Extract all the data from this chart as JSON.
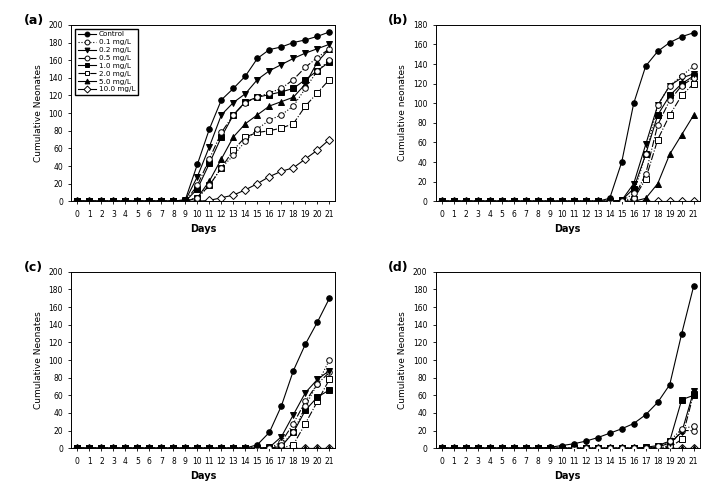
{
  "days": [
    0,
    1,
    2,
    3,
    4,
    5,
    6,
    7,
    8,
    9,
    10,
    11,
    12,
    13,
    14,
    15,
    16,
    17,
    18,
    19,
    20,
    21
  ],
  "panel_a": {
    "title": "(a)",
    "ylabel": "Cumulative Neonates",
    "xlabel": "Days",
    "ylim": [
      0,
      200
    ],
    "yticks": [
      0,
      20,
      40,
      60,
      80,
      100,
      120,
      140,
      160,
      180,
      200
    ],
    "series": [
      {
        "label": "Control",
        "ls": "-",
        "mk": "o",
        "filled": true,
        "data": [
          0,
          0,
          0,
          0,
          0,
          0,
          0,
          0,
          0,
          2,
          42,
          82,
          115,
          128,
          142,
          162,
          172,
          175,
          180,
          183,
          187,
          192
        ]
      },
      {
        "label": "0.1 mg/L",
        "ls": ":",
        "mk": "o",
        "filled": false,
        "data": [
          0,
          0,
          0,
          0,
          0,
          0,
          0,
          0,
          0,
          0,
          4,
          18,
          38,
          52,
          68,
          82,
          92,
          98,
          108,
          128,
          148,
          160
        ]
      },
      {
        "label": "0.2 mg/L",
        "ls": "-",
        "mk": "v",
        "filled": true,
        "data": [
          0,
          0,
          0,
          0,
          0,
          0,
          0,
          0,
          0,
          1,
          28,
          62,
          98,
          112,
          122,
          138,
          148,
          155,
          162,
          168,
          173,
          178
        ]
      },
      {
        "label": "0.5 mg/L",
        "ls": "-.",
        "mk": "o",
        "filled": false,
        "data": [
          0,
          0,
          0,
          0,
          0,
          0,
          0,
          0,
          0,
          0,
          18,
          48,
          78,
          98,
          112,
          118,
          123,
          128,
          138,
          152,
          163,
          173
        ]
      },
      {
        "label": "1.0 mg/L",
        "ls": "-",
        "mk": "s",
        "filled": true,
        "data": [
          0,
          0,
          0,
          0,
          0,
          0,
          0,
          0,
          0,
          0,
          14,
          43,
          73,
          98,
          113,
          118,
          121,
          124,
          128,
          138,
          148,
          158
        ]
      },
      {
        "label": "2.0 mg/L",
        "ls": "-.",
        "mk": "s",
        "filled": false,
        "data": [
          0,
          0,
          0,
          0,
          0,
          0,
          0,
          0,
          0,
          0,
          4,
          18,
          38,
          58,
          73,
          78,
          80,
          83,
          88,
          108,
          123,
          138
        ]
      },
      {
        "label": "5.0 mg/L",
        "ls": "-",
        "mk": "^",
        "filled": true,
        "data": [
          0,
          0,
          0,
          0,
          0,
          0,
          0,
          0,
          0,
          0,
          4,
          23,
          48,
          73,
          88,
          98,
          108,
          113,
          118,
          133,
          158,
          173
        ]
      },
      {
        "label": "10.0 mg/L",
        "ls": "-",
        "mk": "D",
        "filled": false,
        "data": [
          0,
          0,
          0,
          0,
          0,
          0,
          0,
          0,
          0,
          0,
          0,
          1,
          4,
          7,
          13,
          20,
          28,
          34,
          38,
          48,
          58,
          70
        ]
      }
    ]
  },
  "panel_b": {
    "title": "(b)",
    "ylabel": "Cumulative neonates",
    "xlabel": "Days",
    "ylim": [
      0,
      180
    ],
    "yticks": [
      0,
      20,
      40,
      60,
      80,
      100,
      120,
      140,
      160,
      180
    ],
    "series": [
      {
        "label": "Control",
        "ls": "-",
        "mk": "o",
        "filled": true,
        "data": [
          0,
          0,
          0,
          0,
          0,
          0,
          0,
          0,
          0,
          0,
          0,
          0,
          0,
          0,
          3,
          40,
          100,
          138,
          153,
          162,
          168,
          172
        ]
      },
      {
        "label": "0.1 mg/L",
        "ls": ":",
        "mk": "o",
        "filled": false,
        "data": [
          0,
          0,
          0,
          0,
          0,
          0,
          0,
          0,
          0,
          0,
          0,
          0,
          0,
          0,
          0,
          0,
          8,
          48,
          98,
          118,
          128,
          138
        ]
      },
      {
        "label": "0.2 mg/L",
        "ls": "-",
        "mk": "v",
        "filled": true,
        "data": [
          0,
          0,
          0,
          0,
          0,
          0,
          0,
          0,
          0,
          0,
          0,
          0,
          0,
          0,
          0,
          1,
          18,
          58,
          98,
          118,
          126,
          130
        ]
      },
      {
        "label": "0.5 mg/L",
        "ls": "-.",
        "mk": "o",
        "filled": false,
        "data": [
          0,
          0,
          0,
          0,
          0,
          0,
          0,
          0,
          0,
          0,
          0,
          0,
          0,
          0,
          0,
          0,
          3,
          28,
          78,
          103,
          118,
          126
        ]
      },
      {
        "label": "1.0 mg/L",
        "ls": "-",
        "mk": "s",
        "filled": true,
        "data": [
          0,
          0,
          0,
          0,
          0,
          0,
          0,
          0,
          0,
          0,
          0,
          0,
          0,
          0,
          0,
          1,
          13,
          48,
          88,
          108,
          120,
          128
        ]
      },
      {
        "label": "2.0 mg/L",
        "ls": "-.",
        "mk": "s",
        "filled": false,
        "data": [
          0,
          0,
          0,
          0,
          0,
          0,
          0,
          0,
          0,
          0,
          0,
          0,
          0,
          0,
          0,
          0,
          2,
          23,
          63,
          88,
          108,
          120
        ]
      },
      {
        "label": "5.0 mg/L",
        "ls": "-",
        "mk": "^",
        "filled": true,
        "data": [
          0,
          0,
          0,
          0,
          0,
          0,
          0,
          0,
          0,
          0,
          0,
          0,
          0,
          0,
          0,
          0,
          0,
          3,
          18,
          48,
          68,
          88
        ]
      },
      {
        "label": "10.0 mg/L",
        "ls": "-",
        "mk": "D",
        "filled": false,
        "data": [
          0,
          0,
          0,
          0,
          0,
          0,
          0,
          0,
          0,
          0,
          0,
          0,
          0,
          0,
          0,
          0,
          0,
          0,
          0,
          0,
          0,
          0
        ]
      }
    ]
  },
  "panel_c": {
    "title": "(c)",
    "ylabel": "Cumulative Neonates",
    "xlabel": "Days",
    "ylim": [
      0,
      200
    ],
    "yticks": [
      0,
      20,
      40,
      60,
      80,
      100,
      120,
      140,
      160,
      180,
      200
    ],
    "series": [
      {
        "label": "Control",
        "ls": "-",
        "mk": "o",
        "filled": true,
        "data": [
          0,
          0,
          0,
          0,
          0,
          0,
          0,
          0,
          0,
          0,
          0,
          0,
          0,
          0,
          0,
          4,
          18,
          48,
          88,
          118,
          143,
          170
        ]
      },
      {
        "label": "0.1 mg/L",
        "ls": ":",
        "mk": "o",
        "filled": false,
        "data": [
          0,
          0,
          0,
          0,
          0,
          0,
          0,
          0,
          0,
          0,
          0,
          0,
          0,
          0,
          0,
          0,
          0,
          4,
          18,
          48,
          73,
          100
        ]
      },
      {
        "label": "0.2 mg/L",
        "ls": "-",
        "mk": "v",
        "filled": true,
        "data": [
          0,
          0,
          0,
          0,
          0,
          0,
          0,
          0,
          0,
          0,
          0,
          0,
          0,
          0,
          0,
          0,
          1,
          13,
          38,
          63,
          78,
          88
        ]
      },
      {
        "label": "0.5 mg/L",
        "ls": "-.",
        "mk": "o",
        "filled": false,
        "data": [
          0,
          0,
          0,
          0,
          0,
          0,
          0,
          0,
          0,
          0,
          0,
          0,
          0,
          0,
          0,
          0,
          0,
          7,
          28,
          53,
          73,
          86
        ]
      },
      {
        "label": "1.0 mg/L",
        "ls": "-",
        "mk": "s",
        "filled": true,
        "data": [
          0,
          0,
          0,
          0,
          0,
          0,
          0,
          0,
          0,
          0,
          0,
          0,
          0,
          0,
          0,
          0,
          0,
          2,
          18,
          43,
          58,
          66
        ]
      },
      {
        "label": "2.0 mg/L",
        "ls": "-.",
        "mk": "s",
        "filled": false,
        "data": [
          0,
          0,
          0,
          0,
          0,
          0,
          0,
          0,
          0,
          0,
          0,
          0,
          0,
          0,
          0,
          0,
          0,
          0,
          4,
          28,
          53,
          78
        ]
      },
      {
        "label": "5.0 mg/L",
        "ls": "-",
        "mk": "^",
        "filled": true,
        "data": [
          0,
          0,
          0,
          0,
          0,
          0,
          0,
          0,
          0,
          0,
          0,
          0,
          0,
          0,
          0,
          0,
          0,
          0,
          0,
          0,
          0,
          0
        ]
      },
      {
        "label": "10.0 mg/L",
        "ls": "-",
        "mk": "D",
        "filled": false,
        "data": [
          0,
          0,
          0,
          0,
          0,
          0,
          0,
          0,
          0,
          0,
          0,
          0,
          0,
          0,
          0,
          0,
          0,
          0,
          0,
          0,
          0,
          0
        ]
      }
    ]
  },
  "panel_d": {
    "title": "(d)",
    "ylabel": "Cumulative Neonates",
    "xlabel": "Days",
    "ylim": [
      0,
      200
    ],
    "yticks": [
      0,
      20,
      40,
      60,
      80,
      100,
      120,
      140,
      160,
      180,
      200
    ],
    "series": [
      {
        "label": "Control",
        "ls": "-",
        "mk": "o",
        "filled": true,
        "data": [
          0,
          0,
          0,
          0,
          0,
          0,
          0,
          0,
          0,
          1,
          3,
          5,
          8,
          12,
          17,
          22,
          28,
          38,
          52,
          72,
          130,
          184
        ]
      },
      {
        "label": "0.1 mg/L",
        "ls": ":",
        "mk": "o",
        "filled": false,
        "data": [
          0,
          0,
          0,
          0,
          0,
          0,
          0,
          0,
          0,
          0,
          0,
          0,
          0,
          0,
          0,
          0,
          0,
          0,
          2,
          8,
          22,
          25
        ]
      },
      {
        "label": "0.2 mg/L",
        "ls": "-",
        "mk": "v",
        "filled": true,
        "data": [
          0,
          0,
          0,
          0,
          0,
          0,
          0,
          0,
          0,
          0,
          0,
          0,
          0,
          0,
          0,
          0,
          0,
          0,
          1,
          6,
          18,
          65
        ]
      },
      {
        "label": "0.5 mg/L",
        "ls": "-.",
        "mk": "o",
        "filled": false,
        "data": [
          0,
          0,
          0,
          0,
          0,
          0,
          0,
          0,
          0,
          0,
          0,
          0,
          0,
          0,
          0,
          0,
          0,
          0,
          0,
          3,
          20,
          20
        ]
      },
      {
        "label": "1.0 mg/L",
        "ls": "-",
        "mk": "s",
        "filled": true,
        "data": [
          0,
          0,
          0,
          0,
          0,
          0,
          0,
          0,
          0,
          0,
          0,
          0,
          0,
          0,
          0,
          0,
          0,
          1,
          3,
          8,
          55,
          60
        ]
      },
      {
        "label": "2.0 mg/L",
        "ls": "-.",
        "mk": "s",
        "filled": false,
        "data": [
          0,
          0,
          0,
          0,
          0,
          0,
          0,
          0,
          0,
          0,
          0,
          0,
          0,
          0,
          0,
          0,
          0,
          0,
          0,
          1,
          10,
          62
        ]
      },
      {
        "label": "5.0 mg/L",
        "ls": "-",
        "mk": "^",
        "filled": true,
        "data": [
          0,
          0,
          0,
          0,
          0,
          0,
          0,
          0,
          0,
          0,
          0,
          0,
          0,
          0,
          0,
          0,
          0,
          0,
          0,
          0,
          0,
          0
        ]
      },
      {
        "label": "10.0 mg/L",
        "ls": "-",
        "mk": "D",
        "filled": false,
        "data": [
          0,
          0,
          0,
          0,
          0,
          0,
          0,
          0,
          0,
          0,
          0,
          0,
          0,
          0,
          0,
          0,
          0,
          0,
          0,
          0,
          0,
          0
        ]
      }
    ]
  }
}
